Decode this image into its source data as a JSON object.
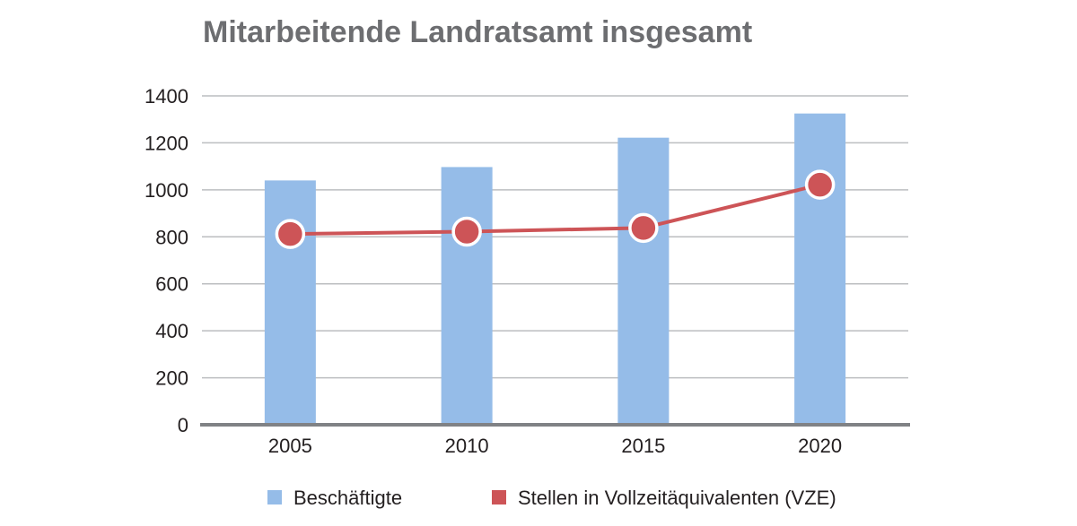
{
  "chart_data": {
    "type": "bar",
    "title": "Mitarbeitende Landratsamt insgesamt",
    "categories": [
      "2005",
      "2010",
      "2015",
      "2020"
    ],
    "ylim": [
      0,
      1400
    ],
    "yticks": [
      0,
      200,
      400,
      600,
      800,
      1000,
      1200,
      1400
    ],
    "grid": true,
    "legend_position": "bottom",
    "series": [
      {
        "name": "Beschäftigte",
        "kind": "bar",
        "color": "#95bce8",
        "values": [
          1040,
          1097,
          1222,
          1325
        ]
      },
      {
        "name": "Stellen in Vollzeitäquivalenten (VZE)",
        "kind": "line",
        "color": "#cd5457",
        "values": [
          812,
          822,
          838,
          1022
        ]
      }
    ]
  }
}
